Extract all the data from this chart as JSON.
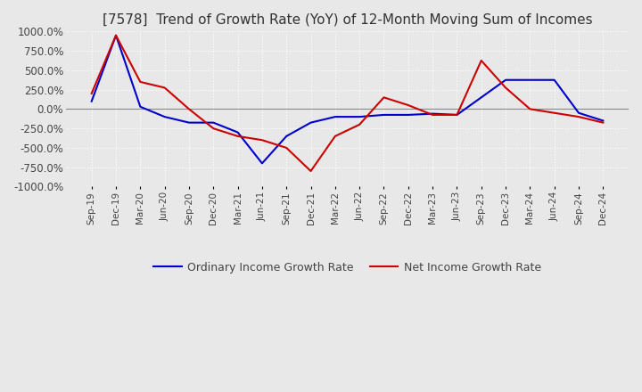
{
  "title": "[7578]  Trend of Growth Rate (YoY) of 12-Month Moving Sum of Incomes",
  "title_fontsize": 11,
  "ylim": [
    -1000,
    1000
  ],
  "yticks": [
    -1000,
    -750,
    -500,
    -250,
    0,
    250,
    500,
    750,
    1000
  ],
  "ytick_labels": [
    "-1000.0%",
    "-750.0%",
    "-500.0%",
    "-250.0%",
    "0.0%",
    "250.0%",
    "500.0%",
    "750.0%",
    "1000.0%"
  ],
  "background_color": "#e8e8e8",
  "grid_color": "#ffffff",
  "ordinary_color": "#0000cc",
  "net_color": "#cc0000",
  "legend_labels": [
    "Ordinary Income Growth Rate",
    "Net Income Growth Rate"
  ],
  "x_labels": [
    "Sep-19",
    "Dec-19",
    "Mar-20",
    "Jun-20",
    "Sep-20",
    "Dec-20",
    "Mar-21",
    "Jun-21",
    "Sep-21",
    "Dec-21",
    "Mar-22",
    "Jun-22",
    "Sep-22",
    "Dec-22",
    "Mar-23",
    "Jun-23",
    "Sep-23",
    "Dec-23",
    "Mar-24",
    "Jun-24",
    "Sep-24",
    "Dec-24"
  ],
  "ordinary": [
    100,
    950,
    30,
    -100,
    -175,
    -175,
    -300,
    -700,
    -350,
    -175,
    -100,
    -100,
    -75,
    -75,
    -60,
    -75,
    150,
    375,
    375,
    375,
    -50,
    -150
  ],
  "net": [
    200,
    950,
    350,
    275,
    0,
    -250,
    -350,
    -400,
    -500,
    -800,
    -350,
    -200,
    150,
    50,
    -75,
    -75,
    625,
    275,
    0,
    -50,
    -100,
    -175
  ]
}
